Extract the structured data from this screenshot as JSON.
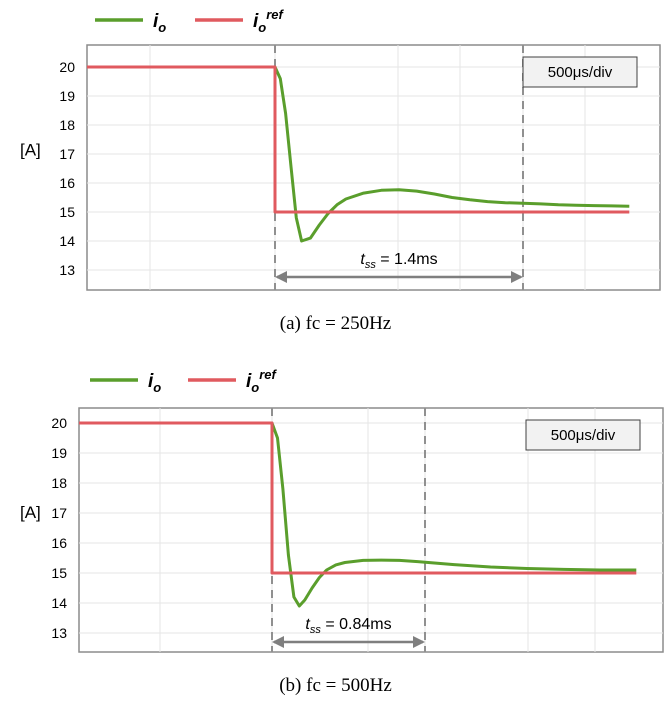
{
  "chart_data": [
    {
      "type": "line",
      "title": "",
      "caption": "(a)  fc  =  250Hz",
      "xlabel": "",
      "ylabel": "[A]",
      "ylim": [
        12.3,
        20.9
      ],
      "yticks": [
        "20",
        "19",
        "18",
        "17",
        "16",
        "15",
        "14",
        "13"
      ],
      "time_scale": "500μs/div",
      "grid": true,
      "legend": {
        "placement": "top-left",
        "entries": [
          {
            "name": "i",
            "sub": "o",
            "sup": ""
          },
          {
            "name": "i",
            "sub": "o",
            "sup": "ref"
          }
        ]
      },
      "x_unit": "ms",
      "xlim": [
        -1.0,
        2.0
      ],
      "annotation": {
        "symbol": "t",
        "sub": "ss",
        "value": " = 1.4ms",
        "from_ms": 0.0,
        "to_ms": 1.4
      },
      "series": [
        {
          "name": "io",
          "color": "#5a9e2c",
          "x": [
            -1.0,
            0.0,
            0.03,
            0.06,
            0.09,
            0.12,
            0.15,
            0.2,
            0.25,
            0.3,
            0.35,
            0.4,
            0.5,
            0.6,
            0.7,
            0.8,
            0.9,
            1.0,
            1.1,
            1.2,
            1.3,
            1.4,
            1.5,
            1.6,
            1.7,
            1.8,
            1.9,
            2.0
          ],
          "y": [
            20.0,
            20.0,
            19.6,
            18.4,
            16.6,
            14.8,
            14.0,
            14.1,
            14.55,
            14.95,
            15.25,
            15.45,
            15.65,
            15.75,
            15.77,
            15.72,
            15.62,
            15.5,
            15.42,
            15.36,
            15.32,
            15.3,
            15.28,
            15.25,
            15.23,
            15.22,
            15.21,
            15.2
          ]
        },
        {
          "name": "io_ref",
          "color": "#e05a5f",
          "x": [
            -1.0,
            0.0,
            0.0,
            2.0
          ],
          "y": [
            20.0,
            20.0,
            15.0,
            15.0
          ]
        }
      ]
    },
    {
      "type": "line",
      "title": "",
      "caption": "(b)  fc  =  500Hz",
      "xlabel": "",
      "ylabel": "[A]",
      "ylim": [
        12.3,
        20.9
      ],
      "yticks": [
        "20",
        "19",
        "18",
        "17",
        "16",
        "15",
        "14",
        "13"
      ],
      "time_scale": "500μs/div",
      "grid": true,
      "legend": {
        "placement": "top-left",
        "entries": [
          {
            "name": "i",
            "sub": "o",
            "sup": ""
          },
          {
            "name": "i",
            "sub": "o",
            "sup": "ref"
          }
        ]
      },
      "x_unit": "ms",
      "xlim": [
        -1.0,
        2.0
      ],
      "annotation": {
        "symbol": "t",
        "sub": "ss",
        "value": " = 0.84ms",
        "from_ms": 0.0,
        "to_ms": 0.84
      },
      "series": [
        {
          "name": "io",
          "color": "#5a9e2c",
          "x": [
            -1.0,
            0.0,
            0.03,
            0.06,
            0.09,
            0.12,
            0.15,
            0.18,
            0.22,
            0.26,
            0.3,
            0.35,
            0.4,
            0.5,
            0.6,
            0.7,
            0.8,
            0.9,
            1.0,
            1.2,
            1.4,
            1.6,
            1.8,
            2.0
          ],
          "y": [
            20.0,
            20.0,
            19.5,
            17.8,
            15.6,
            14.2,
            13.9,
            14.1,
            14.5,
            14.85,
            15.1,
            15.27,
            15.35,
            15.42,
            15.43,
            15.42,
            15.38,
            15.33,
            15.28,
            15.2,
            15.15,
            15.12,
            15.1,
            15.1
          ]
        },
        {
          "name": "io_ref",
          "color": "#e05a5f",
          "x": [
            -1.0,
            0.0,
            0.0,
            2.0
          ],
          "y": [
            20.0,
            20.0,
            15.0,
            15.0
          ]
        }
      ]
    }
  ]
}
